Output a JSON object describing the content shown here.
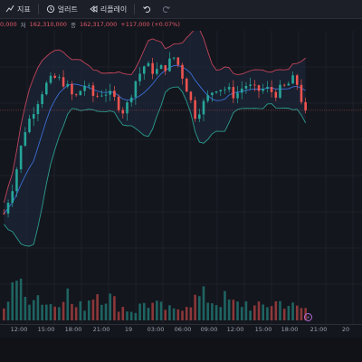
{
  "toolbar": {
    "items": [
      {
        "label": "지표",
        "icon": "indicator-icon"
      },
      {
        "label": "얼러트",
        "icon": "alert-clock-icon"
      },
      {
        "label": "리플레이",
        "icon": "replay-icon"
      }
    ],
    "undo_icon": "undo-icon",
    "redo_icon": "redo-icon"
  },
  "legend": {
    "open_fragment": "0,000",
    "low_label": "저",
    "low_value": "162,310,000",
    "close_label": "종",
    "close_value": "162,317,000",
    "change": "+117,000 (+0.07%)"
  },
  "marker": {
    "label": "⚡"
  },
  "colors": {
    "up": "#26a69a",
    "down": "#ef5350",
    "upper_band": "#c0445a",
    "lower_band": "#2a9d8f",
    "ma": "#3b6fd6",
    "band_fill": "#1e2a3e",
    "last_price_line": "#e05a6a"
  },
  "chart_data": {
    "type": "candlestick",
    "title": "",
    "x_ticks": [
      "12:00",
      "15:00",
      "18:00",
      "21:00",
      "19",
      "03:00",
      "06:00",
      "09:00",
      "12:00",
      "15:00",
      "18:00",
      "21:00",
      "20"
    ],
    "price_path": [
      162.33,
      163.8,
      166.1,
      167.2,
      168.2,
      168.6,
      168.4,
      167.6,
      168.3,
      167.7,
      168.0,
      167.6,
      167.0,
      168.4,
      169.2,
      168.9,
      169.1,
      169.6,
      168.4,
      166.9,
      167.5,
      168.2,
      168.1,
      167.8,
      168.3,
      168.0,
      168.1,
      167.9,
      168.2,
      168.6,
      166.9
    ],
    "volume_relative": [
      0.15,
      0.85,
      0.35,
      0.5,
      0.3,
      0.25,
      0.55,
      0.2,
      0.25,
      0.5,
      0.45,
      0.3,
      0.2,
      0.15,
      0.3,
      0.25,
      0.2,
      0.15,
      0.3,
      0.35,
      0.4,
      0.3,
      0.35,
      0.25,
      0.3,
      0.2,
      0.25,
      0.3,
      0.3,
      0.2,
      0.2
    ]
  }
}
